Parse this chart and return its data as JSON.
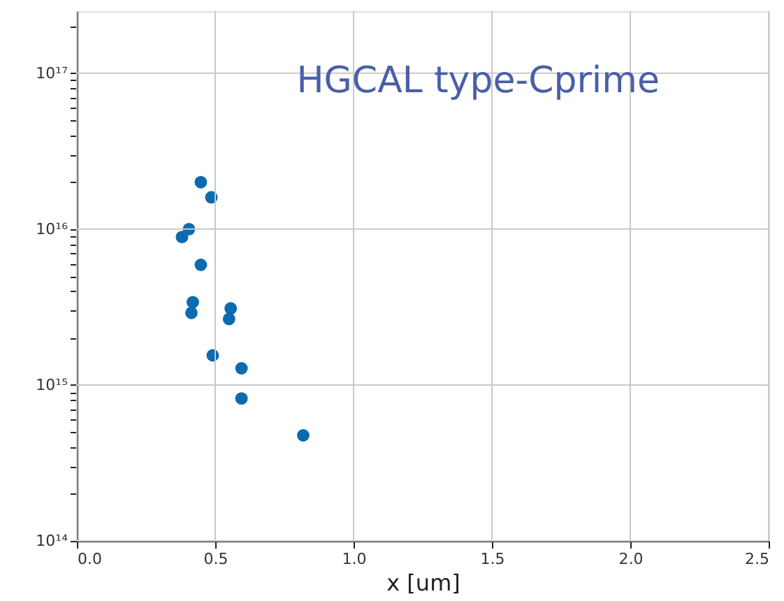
{
  "chart_data": {
    "type": "scatter",
    "title": "HGCAL type-Cprime",
    "xlabel": "x [um]",
    "x": [
      0.448,
      0.486,
      0.405,
      0.38,
      0.448,
      0.419,
      0.414,
      0.556,
      0.55,
      0.491,
      0.595,
      0.595,
      0.818
    ],
    "series": [
      {
        "color": "#0b6bb0",
        "values": [
          2e+16,
          1.6e+16,
          1e+16,
          8900000000000000.0,
          5900000000000000.0,
          3400000000000000.0,
          2900000000000000.0,
          3100000000000000.0,
          2650000000000000.0,
          1550000000000000.0,
          1280000000000000.0,
          820000000000000.0,
          475000000000000.0
        ]
      }
    ],
    "xlim": [
      0,
      2.5
    ],
    "xticks": [
      {
        "value": 0,
        "label": "0.0"
      },
      0.5,
      {
        "value": 1,
        "label": "1.0"
      },
      1.5,
      {
        "value": 2,
        "label": "2.0"
      },
      2.5
    ],
    "ylim": [
      100000000000000.0,
      2.5e+17
    ],
    "log": true,
    "grid": true,
    "marker": "circle",
    "yticks": [
      {
        "value": 100000000000000.0,
        "label": "10¹⁴"
      },
      {
        "value": 200000000000000.0,
        "label": null
      },
      {
        "value": 300000000000000.0,
        "label": null
      },
      {
        "value": 400000000000000.0,
        "label": null
      },
      {
        "value": 500000000000000.0,
        "label": null
      },
      {
        "value": 600000000000000.0,
        "label": null
      },
      {
        "value": 700000000000000.0,
        "label": null
      },
      {
        "value": 800000000000000.0,
        "label": null
      },
      {
        "value": 900000000000000.0,
        "label": null
      },
      {
        "value": 1000000000000000.0,
        "label": "10¹⁵"
      },
      {
        "value": 2000000000000000.0,
        "label": null
      },
      {
        "value": 3000000000000000.0,
        "label": null
      },
      {
        "value": 4000000000000000.0,
        "label": null
      },
      {
        "value": 5000000000000000.0,
        "label": null
      },
      {
        "value": 6000000000000000.0,
        "label": null
      },
      {
        "value": 7000000000000000.0,
        "label": null
      },
      {
        "value": 8000000000000000.0,
        "label": null
      },
      {
        "value": 9000000000000000.0,
        "label": null
      },
      {
        "value": 1e+16,
        "label": "10¹⁶"
      },
      {
        "value": 2e+16,
        "label": null
      },
      {
        "value": 3e+16,
        "label": null
      },
      {
        "value": 4e+16,
        "label": null
      },
      {
        "value": 5e+16,
        "label": null
      },
      {
        "value": 6e+16,
        "label": null
      },
      {
        "value": 7e+16,
        "label": null
      },
      {
        "value": 8e+16,
        "label": null
      },
      {
        "value": 9e+16,
        "label": null
      },
      {
        "value": 1e+17,
        "label": "10¹⁷"
      },
      {
        "value": 2e+17,
        "label": null
      }
    ]
  }
}
